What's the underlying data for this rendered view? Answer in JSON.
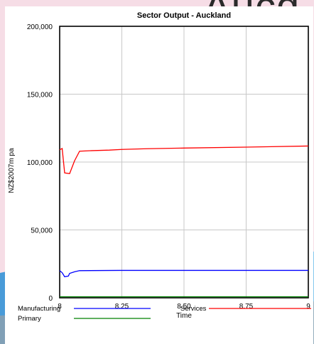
{
  "background": {
    "heading_text": "Aucd"
  },
  "chart_data": {
    "type": "line",
    "title": "Sector Output - Auckland",
    "xlabel": "Time",
    "ylabel": "NZ$2007m pa",
    "xlim": [
      8,
      9
    ],
    "ylim": [
      0,
      200000
    ],
    "x_ticks": [
      8,
      8.25,
      8.5,
      8.75,
      9
    ],
    "x_tick_labels": [
      "8",
      "8.25",
      "8.50",
      "8.75",
      "9"
    ],
    "y_ticks": [
      0,
      50000,
      100000,
      150000,
      200000
    ],
    "y_tick_labels": [
      "0",
      "50,000",
      "100,000",
      "150,000",
      "200,000"
    ],
    "grid": true,
    "legend_position": "bottom",
    "series": [
      {
        "name": "Manufacturing",
        "color": "#0000ff",
        "points": [
          [
            8.0,
            20000
          ],
          [
            8.01,
            18500
          ],
          [
            8.02,
            15500
          ],
          [
            8.035,
            16000
          ],
          [
            8.04,
            18000
          ],
          [
            8.06,
            19200
          ],
          [
            8.08,
            20000
          ],
          [
            8.24,
            20200
          ],
          [
            9.0,
            20200
          ]
        ]
      },
      {
        "name": "Services",
        "color": "#ff0000",
        "points": [
          [
            8.0,
            109000
          ],
          [
            8.01,
            110000
          ],
          [
            8.02,
            92000
          ],
          [
            8.04,
            91500
          ],
          [
            8.06,
            101000
          ],
          [
            8.08,
            108000
          ],
          [
            8.13,
            108400
          ],
          [
            8.2,
            108800
          ],
          [
            8.25,
            109300
          ],
          [
            8.35,
            109800
          ],
          [
            8.5,
            110300
          ],
          [
            8.75,
            111000
          ],
          [
            9.0,
            111800
          ]
        ]
      },
      {
        "name": "Primary",
        "color": "#008000",
        "points": [
          [
            8.0,
            800
          ],
          [
            9.0,
            800
          ]
        ]
      }
    ]
  }
}
